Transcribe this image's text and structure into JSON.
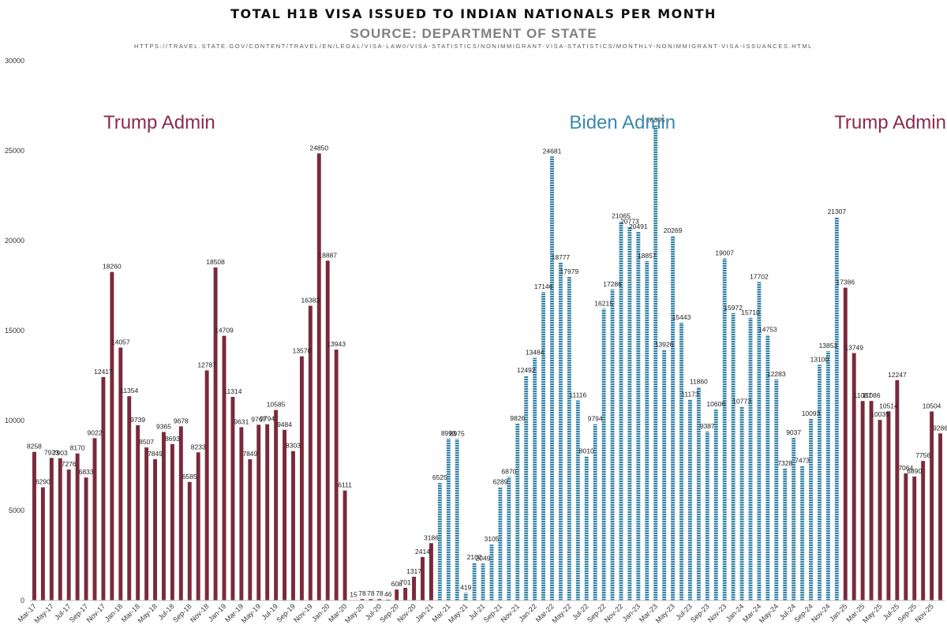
{
  "chart_data": {
    "type": "bar",
    "title": "TOTAL H1B VISA ISSUED TO INDIAN NATIONALS PER MONTH",
    "subtitle": "SOURCE: DEPARTMENT OF STATE",
    "source_url": "HTTPS://TRAVEL.STATE.GOV/CONTENT/TRAVEL/EN/LEGAL/VISA-LAW0/VISA-STATISTICS/NONIMMIGRANT-VISA-STATISTICS/MONTHLY-NONIMMIGRANT-VISA-ISSUANCES.HTML",
    "ylim": [
      0,
      30000
    ],
    "yticks": [
      0,
      5000,
      10000,
      15000,
      20000,
      25000,
      30000
    ],
    "grid": false,
    "colors": {
      "trump": "#7b2a3b",
      "biden": "#3a85a8"
    },
    "annotations": [
      {
        "text": "Trump Admin",
        "color": "#8c2a4e",
        "at_index": 8
      },
      {
        "text": "Biden Admin",
        "color": "#3a8aae",
        "at_index": 62
      },
      {
        "text": "Trump Admin",
        "color": "#8c2a4e",
        "at_index": 99
      }
    ],
    "categories": [
      "Mar-17",
      "Apr-17",
      "May-17",
      "Jun-17",
      "Jul-17",
      "Aug-17",
      "Sep-17",
      "Oct-17",
      "Nov-17",
      "Dec-17",
      "Jan-18",
      "Feb-18",
      "Mar-18",
      "Apr-18",
      "May-18",
      "Jun-18",
      "Jul-18",
      "Aug-18",
      "Sep-18",
      "Oct-18",
      "Nov-18",
      "Dec-18",
      "Jan-19",
      "Feb-19",
      "Mar-19",
      "Apr-19",
      "May-19",
      "Jun-19",
      "Jul-19",
      "Aug-19",
      "Sep-19",
      "Oct-19",
      "Nov-19",
      "Dec-19",
      "Jan-20",
      "Feb-20",
      "Mar-20",
      "Apr-20",
      "May-20",
      "Jun-20",
      "Jul-20",
      "Aug-20",
      "Sep-20",
      "Oct-20",
      "Nov-20",
      "Dec-20",
      "Jan-21",
      "Feb-21",
      "Mar-21",
      "Apr-21",
      "May-21",
      "Jun-21",
      "Jul-21",
      "Aug-21",
      "Sep-21",
      "Oct-21",
      "Nov-21",
      "Dec-21",
      "Jan-22",
      "Feb-22",
      "Mar-22",
      "Apr-22",
      "May-22",
      "Jun-22",
      "Jul-22",
      "Aug-22",
      "Sep-22",
      "Oct-22",
      "Nov-22",
      "Dec-22",
      "Jan-23",
      "Feb-23",
      "Mar-23",
      "Apr-23",
      "May-23",
      "Jun-23",
      "Jul-23",
      "Aug-23",
      "Sep-23",
      "Oct-23",
      "Nov-23",
      "Dec-23",
      "Jan-24",
      "Feb-24",
      "Mar-24",
      "Apr-24",
      "May-24",
      "Jun-24",
      "Jul-24",
      "Aug-24",
      "Sep-24",
      "Oct-24",
      "Nov-24",
      "Dec-24",
      "Jan-25",
      "Feb-25",
      "Mar-25",
      "Apr-25",
      "May-25",
      "Jun-25",
      "Jul-25",
      "Aug-25",
      "Sep-25",
      "Oct-25",
      "Nov-25",
      "Dec-25"
    ],
    "x_tick_labels": [
      "Mar-17",
      "May-17",
      "Jul-17",
      "Sep-17",
      "Nov-17",
      "Jan-18",
      "Mar-18",
      "May-18",
      "Jul-18",
      "Sep-18",
      "Nov-18",
      "Jan-19",
      "Mar-19",
      "May-19",
      "Jul-19",
      "Sep-19",
      "Nov-19",
      "Jan-20",
      "Mar-20",
      "May-20",
      "Jul-20",
      "Sep-20",
      "Nov-20",
      "Jan-21",
      "Mar-21",
      "May-21",
      "Jul-21",
      "Sep-21",
      "Nov-21",
      "Jan-22",
      "Mar-22",
      "May-22",
      "Jul-22",
      "Sep-22",
      "Nov-22",
      "Jan-23",
      "Mar-23",
      "May-23",
      "Jul-23",
      "Sep-23",
      "Nov-23",
      "Jan-24",
      "Mar-24",
      "May-24",
      "Jul-24",
      "Sep-24",
      "Nov-24",
      "Jan-25",
      "Mar-25",
      "May-25",
      "Jul-25",
      "Sep-25",
      "Nov-25"
    ],
    "values": [
      8258,
      6290,
      7923,
      7903,
      7276,
      8170,
      6833,
      9022,
      12417,
      18260,
      14057,
      11354,
      9739,
      8507,
      7849,
      9365,
      8693,
      9678,
      6585,
      8233,
      12787,
      18508,
      14709,
      11314,
      9631,
      7849,
      9767,
      9794,
      10585,
      9484,
      8303,
      13570,
      16383,
      24850,
      18887,
      13943,
      6111,
      15,
      78,
      78,
      78,
      46,
      608,
      701,
      1317,
      2414,
      3186,
      6525,
      8993,
      8975,
      419,
      2102,
      2049,
      3105,
      6289,
      6870,
      9826,
      12492,
      13484,
      17146,
      24681,
      18777,
      17979,
      11116,
      8010,
      9794,
      16215,
      17286,
      21065,
      20773,
      20491,
      18857,
      26395,
      13926,
      20269,
      15443,
      11173,
      11860,
      9387,
      10606,
      19007,
      15972,
      10773,
      15710,
      17702,
      14753,
      12283,
      7328,
      9037,
      7473,
      10093,
      13100,
      13853,
      21307,
      17386,
      13749,
      11087,
      11086,
      10035,
      10514,
      12247,
      7064,
      6890,
      7756,
      10504,
      9286
    ],
    "series": [
      {
        "name": "Trump Admin",
        "from_index": 0,
        "to_index": 46,
        "color": "#7b2a3b"
      },
      {
        "name": "Biden Admin",
        "from_index": 47,
        "to_index": 93,
        "color": "#3a85a8"
      },
      {
        "name": "Trump Admin",
        "from_index": 94,
        "to_index": 105,
        "color": "#7b2a3b"
      }
    ]
  }
}
